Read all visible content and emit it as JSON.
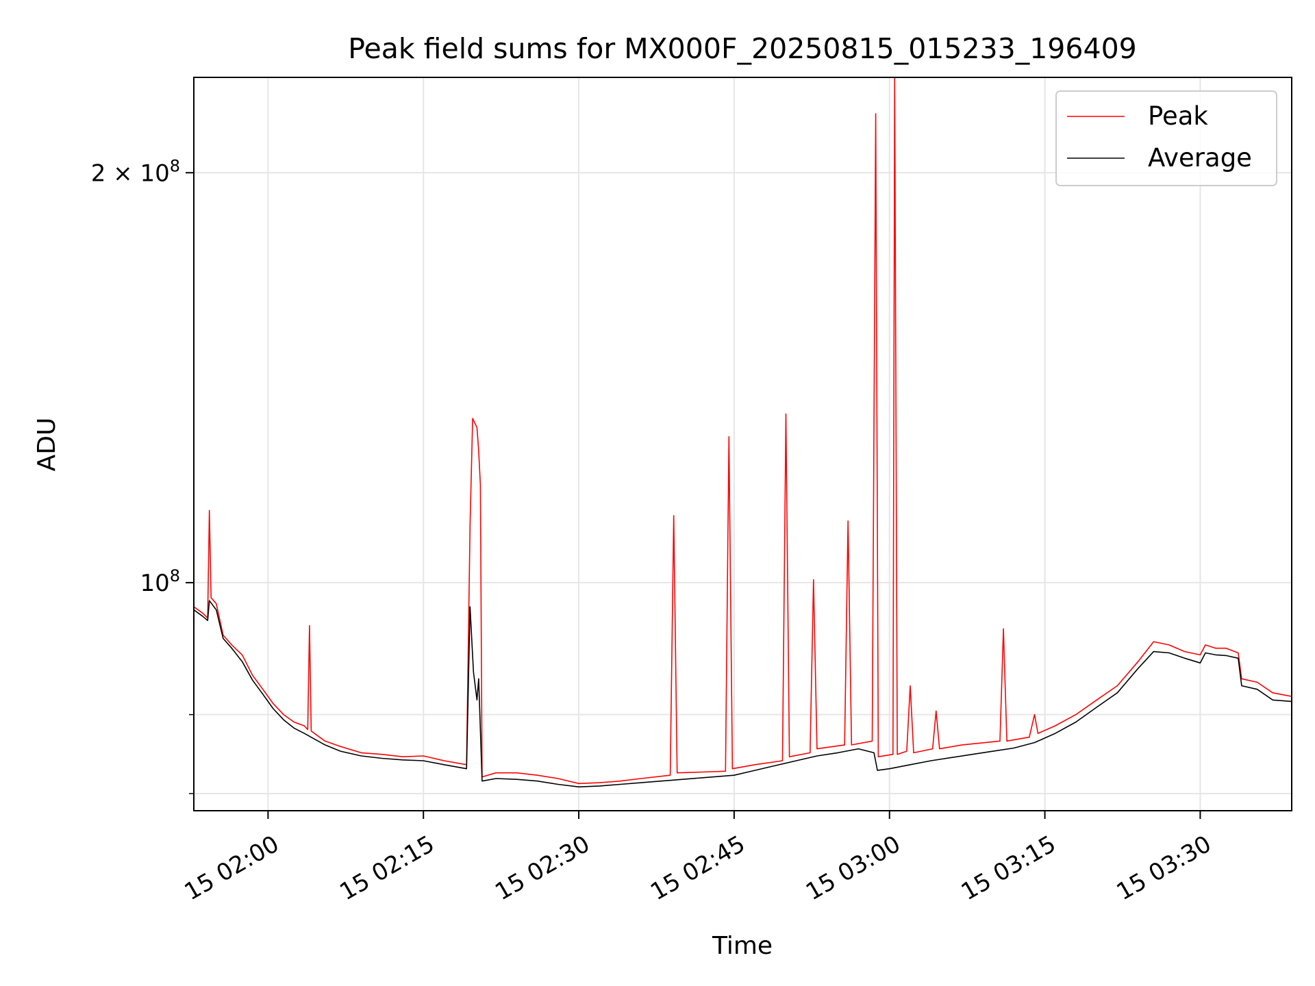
{
  "chart_data": {
    "type": "line",
    "title": "Peak field sums for MX000F_20250815_015233_196409",
    "xlabel": "Time",
    "ylabel": "ADU",
    "x_axis": {
      "scale": "time",
      "range": [
        "2025-08-15 01:52:50",
        "2025-08-15 03:38:50"
      ],
      "ticks": [
        {
          "value": "2025-08-15 02:00",
          "label": "15 02:00"
        },
        {
          "value": "2025-08-15 02:15",
          "label": "15 02:15"
        },
        {
          "value": "2025-08-15 02:30",
          "label": "15 02:30"
        },
        {
          "value": "2025-08-15 02:45",
          "label": "15 02:45"
        },
        {
          "value": "2025-08-15 03:00",
          "label": "15 03:00"
        },
        {
          "value": "2025-08-15 03:15",
          "label": "15 03:15"
        },
        {
          "value": "2025-08-15 03:30",
          "label": "15 03:30"
        }
      ]
    },
    "y_axis": {
      "scale": "log",
      "range": [
        68000000,
        235000000
      ],
      "major_ticks": [
        {
          "value": 100000000,
          "base": "10",
          "exp": "8",
          "mant": ""
        },
        {
          "value": 200000000,
          "base": "10",
          "exp": "8",
          "mant": "2 × "
        }
      ],
      "minor_ticks": [
        70000000,
        80000000
      ]
    },
    "grid": true,
    "legend_position": "top-right",
    "colors": {
      "peak": "#ff0000",
      "average": "#000000",
      "grid": "#e6e6e6"
    },
    "series": [
      {
        "name": "Peak",
        "color": "#ff0000",
        "points": [
          [
            "2025-08-15 01:52:50",
            96000000
          ],
          [
            "2025-08-15 01:53:40",
            95000000
          ],
          [
            "2025-08-15 01:54:10",
            94200000
          ],
          [
            "2025-08-15 01:54:20",
            113000000
          ],
          [
            "2025-08-15 01:54:30",
            97500000
          ],
          [
            "2025-08-15 01:55:00",
            96500000
          ],
          [
            "2025-08-15 01:55:40",
            91500000
          ],
          [
            "2025-08-15 01:56:30",
            90000000
          ],
          [
            "2025-08-15 01:57:30",
            88500000
          ],
          [
            "2025-08-15 01:58:30",
            85500000
          ],
          [
            "2025-08-15 01:59:30",
            83500000
          ],
          [
            "2025-08-15 02:00:30",
            81500000
          ],
          [
            "2025-08-15 02:01:30",
            80000000
          ],
          [
            "2025-08-15 02:02:30",
            79000000
          ],
          [
            "2025-08-15 02:03:30",
            78500000
          ],
          [
            "2025-08-15 02:03:50",
            78000000
          ],
          [
            "2025-08-15 02:04:00",
            93000000
          ],
          [
            "2025-08-15 02:04:10",
            77800000
          ],
          [
            "2025-08-15 02:05:30",
            76500000
          ],
          [
            "2025-08-15 02:07:00",
            75800000
          ],
          [
            "2025-08-15 02:09:00",
            75000000
          ],
          [
            "2025-08-15 02:11:00",
            74800000
          ],
          [
            "2025-08-15 02:13:00",
            74500000
          ],
          [
            "2025-08-15 02:15:00",
            74600000
          ],
          [
            "2025-08-15 02:17:00",
            74000000
          ],
          [
            "2025-08-15 02:19:10",
            73500000
          ],
          [
            "2025-08-15 02:19:30",
            110000000
          ],
          [
            "2025-08-15 02:19:45",
            132000000
          ],
          [
            "2025-08-15 02:20:10",
            130000000
          ],
          [
            "2025-08-15 02:20:20",
            125000000
          ],
          [
            "2025-08-15 02:20:30",
            118000000
          ],
          [
            "2025-08-15 02:20:40",
            72000000
          ],
          [
            "2025-08-15 02:22:00",
            72500000
          ],
          [
            "2025-08-15 02:24:00",
            72500000
          ],
          [
            "2025-08-15 02:26:00",
            72200000
          ],
          [
            "2025-08-15 02:28:00",
            71800000
          ],
          [
            "2025-08-15 02:30:00",
            71200000
          ],
          [
            "2025-08-15 02:32:00",
            71300000
          ],
          [
            "2025-08-15 02:34:00",
            71500000
          ],
          [
            "2025-08-15 02:36:00",
            71800000
          ],
          [
            "2025-08-15 02:38:50",
            72200000
          ],
          [
            "2025-08-15 02:39:10",
            112000000
          ],
          [
            "2025-08-15 02:39:30",
            72500000
          ],
          [
            "2025-08-15 02:42:00",
            72600000
          ],
          [
            "2025-08-15 02:44:10",
            72700000
          ],
          [
            "2025-08-15 02:44:30",
            128000000
          ],
          [
            "2025-08-15 02:44:50",
            73000000
          ],
          [
            "2025-08-15 02:47:00",
            73500000
          ],
          [
            "2025-08-15 02:49:40",
            74000000
          ],
          [
            "2025-08-15 02:50:00",
            133000000
          ],
          [
            "2025-08-15 02:50:20",
            74500000
          ],
          [
            "2025-08-15 02:52:20",
            75000000
          ],
          [
            "2025-08-15 02:52:40",
            100500000
          ],
          [
            "2025-08-15 02:53:00",
            75500000
          ],
          [
            "2025-08-15 02:55:40",
            76000000
          ],
          [
            "2025-08-15 02:56:00",
            111000000
          ],
          [
            "2025-08-15 02:56:20",
            76000000
          ],
          [
            "2025-08-15 02:58:20",
            76500000
          ],
          [
            "2025-08-15 02:58:40",
            221000000
          ],
          [
            "2025-08-15 02:58:55",
            74500000
          ],
          [
            "2025-08-15 03:00:20",
            74800000
          ],
          [
            "2025-08-15 03:00:30",
            235000000
          ],
          [
            "2025-08-15 03:00:45",
            74800000
          ],
          [
            "2025-08-15 03:01:40",
            75200000
          ],
          [
            "2025-08-15 03:02:00",
            84000000
          ],
          [
            "2025-08-15 03:02:20",
            75000000
          ],
          [
            "2025-08-15 03:04:10",
            75500000
          ],
          [
            "2025-08-15 03:04:30",
            80500000
          ],
          [
            "2025-08-15 03:04:50",
            75500000
          ],
          [
            "2025-08-15 03:07:00",
            76000000
          ],
          [
            "2025-08-15 03:10:40",
            76500000
          ],
          [
            "2025-08-15 03:11:00",
            92500000
          ],
          [
            "2025-08-15 03:11:20",
            76500000
          ],
          [
            "2025-08-15 03:13:30",
            77000000
          ],
          [
            "2025-08-15 03:14:00",
            80000000
          ],
          [
            "2025-08-15 03:14:20",
            77500000
          ],
          [
            "2025-08-15 03:16:00",
            78500000
          ],
          [
            "2025-08-15 03:18:00",
            80000000
          ],
          [
            "2025-08-15 03:20:00",
            82000000
          ],
          [
            "2025-08-15 03:22:00",
            84000000
          ],
          [
            "2025-08-15 03:24:00",
            87500000
          ],
          [
            "2025-08-15 03:25:30",
            90500000
          ],
          [
            "2025-08-15 03:27:00",
            90000000
          ],
          [
            "2025-08-15 03:28:30",
            89000000
          ],
          [
            "2025-08-15 03:30:00",
            88500000
          ],
          [
            "2025-08-15 03:30:30",
            90000000
          ],
          [
            "2025-08-15 03:31:30",
            89500000
          ],
          [
            "2025-08-15 03:32:30",
            89500000
          ],
          [
            "2025-08-15 03:33:40",
            88800000
          ],
          [
            "2025-08-15 03:34:00",
            85000000
          ],
          [
            "2025-08-15 03:35:30",
            84500000
          ],
          [
            "2025-08-15 03:37:00",
            83000000
          ],
          [
            "2025-08-15 03:38:50",
            82500000
          ]
        ]
      },
      {
        "name": "Average",
        "color": "#000000",
        "points": [
          [
            "2025-08-15 01:52:50",
            95500000
          ],
          [
            "2025-08-15 01:53:40",
            94500000
          ],
          [
            "2025-08-15 01:54:10",
            93800000
          ],
          [
            "2025-08-15 01:54:20",
            97000000
          ],
          [
            "2025-08-15 01:55:00",
            95500000
          ],
          [
            "2025-08-15 01:55:40",
            91000000
          ],
          [
            "2025-08-15 01:56:30",
            89500000
          ],
          [
            "2025-08-15 01:57:30",
            87500000
          ],
          [
            "2025-08-15 01:58:30",
            84800000
          ],
          [
            "2025-08-15 01:59:30",
            82800000
          ],
          [
            "2025-08-15 02:00:30",
            80800000
          ],
          [
            "2025-08-15 02:01:30",
            79300000
          ],
          [
            "2025-08-15 02:02:30",
            78200000
          ],
          [
            "2025-08-15 02:03:30",
            77500000
          ],
          [
            "2025-08-15 02:05:30",
            76000000
          ],
          [
            "2025-08-15 02:07:00",
            75200000
          ],
          [
            "2025-08-15 02:09:00",
            74600000
          ],
          [
            "2025-08-15 02:11:00",
            74300000
          ],
          [
            "2025-08-15 02:13:00",
            74100000
          ],
          [
            "2025-08-15 02:15:00",
            74000000
          ],
          [
            "2025-08-15 02:17:00",
            73500000
          ],
          [
            "2025-08-15 02:19:10",
            73000000
          ],
          [
            "2025-08-15 02:19:30",
            96000000
          ],
          [
            "2025-08-15 02:19:50",
            86000000
          ],
          [
            "2025-08-15 02:20:10",
            82000000
          ],
          [
            "2025-08-15 02:20:20",
            85000000
          ],
          [
            "2025-08-15 02:20:40",
            71500000
          ],
          [
            "2025-08-15 02:22:00",
            71800000
          ],
          [
            "2025-08-15 02:24:00",
            71700000
          ],
          [
            "2025-08-15 02:26:00",
            71500000
          ],
          [
            "2025-08-15 02:28:00",
            71100000
          ],
          [
            "2025-08-15 02:30:00",
            70800000
          ],
          [
            "2025-08-15 02:32:00",
            70900000
          ],
          [
            "2025-08-15 02:34:00",
            71100000
          ],
          [
            "2025-08-15 02:36:00",
            71300000
          ],
          [
            "2025-08-15 02:39:00",
            71600000
          ],
          [
            "2025-08-15 02:42:00",
            71900000
          ],
          [
            "2025-08-15 02:45:00",
            72200000
          ],
          [
            "2025-08-15 02:47:00",
            72800000
          ],
          [
            "2025-08-15 02:49:00",
            73400000
          ],
          [
            "2025-08-15 02:51:00",
            74000000
          ],
          [
            "2025-08-15 02:53:00",
            74600000
          ],
          [
            "2025-08-15 02:55:00",
            75000000
          ],
          [
            "2025-08-15 02:57:00",
            75500000
          ],
          [
            "2025-08-15 02:58:30",
            75000000
          ],
          [
            "2025-08-15 02:58:50",
            72800000
          ],
          [
            "2025-08-15 03:00:00",
            73000000
          ],
          [
            "2025-08-15 03:02:00",
            73500000
          ],
          [
            "2025-08-15 03:04:00",
            74000000
          ],
          [
            "2025-08-15 03:06:00",
            74400000
          ],
          [
            "2025-08-15 03:08:00",
            74800000
          ],
          [
            "2025-08-15 03:10:00",
            75200000
          ],
          [
            "2025-08-15 03:12:00",
            75600000
          ],
          [
            "2025-08-15 03:14:00",
            76300000
          ],
          [
            "2025-08-15 03:16:00",
            77500000
          ],
          [
            "2025-08-15 03:18:00",
            79000000
          ],
          [
            "2025-08-15 03:20:00",
            81000000
          ],
          [
            "2025-08-15 03:22:00",
            83000000
          ],
          [
            "2025-08-15 03:24:00",
            86500000
          ],
          [
            "2025-08-15 03:25:30",
            89000000
          ],
          [
            "2025-08-15 03:27:00",
            88800000
          ],
          [
            "2025-08-15 03:28:30",
            88000000
          ],
          [
            "2025-08-15 03:30:00",
            87300000
          ],
          [
            "2025-08-15 03:30:30",
            88800000
          ],
          [
            "2025-08-15 03:31:30",
            88500000
          ],
          [
            "2025-08-15 03:32:30",
            88400000
          ],
          [
            "2025-08-15 03:33:40",
            88000000
          ],
          [
            "2025-08-15 03:34:00",
            84000000
          ],
          [
            "2025-08-15 03:35:30",
            83500000
          ],
          [
            "2025-08-15 03:37:00",
            82000000
          ],
          [
            "2025-08-15 03:38:50",
            81800000
          ]
        ]
      }
    ]
  }
}
